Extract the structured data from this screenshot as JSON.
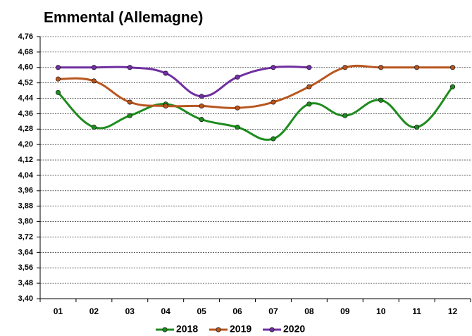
{
  "chart_data": {
    "type": "line",
    "title": "Emmental (Allemagne)",
    "categories": [
      "01",
      "02",
      "03",
      "04",
      "05",
      "06",
      "07",
      "08",
      "09",
      "10",
      "11",
      "12"
    ],
    "series": [
      {
        "name": "2018",
        "color": "#1e8c1e",
        "values": [
          4.47,
          4.29,
          4.35,
          4.41,
          4.33,
          4.29,
          4.23,
          4.41,
          4.35,
          4.43,
          4.29,
          4.5
        ]
      },
      {
        "name": "2019",
        "color": "#b8561e",
        "values": [
          4.54,
          4.53,
          4.42,
          4.4,
          4.4,
          4.39,
          4.42,
          4.5,
          4.6,
          4.6,
          4.6,
          4.6
        ]
      },
      {
        "name": "2020",
        "color": "#7030a0",
        "values": [
          4.6,
          4.6,
          4.6,
          4.57,
          4.45,
          4.55,
          4.6,
          4.6,
          null,
          null,
          null,
          null
        ]
      }
    ],
    "ylim": [
      3.4,
      4.76
    ],
    "yticks": [
      {
        "value": 3.4,
        "label": "3,40"
      },
      {
        "value": 3.48,
        "label": "3,48"
      },
      {
        "value": 3.56,
        "label": "3,56"
      },
      {
        "value": 3.64,
        "label": "3,64"
      },
      {
        "value": 3.72,
        "label": "3,72"
      },
      {
        "value": 3.8,
        "label": "3,80"
      },
      {
        "value": 3.88,
        "label": "3,88"
      },
      {
        "value": 3.96,
        "label": "3,96"
      },
      {
        "value": 4.04,
        "label": "4,04"
      },
      {
        "value": 4.12,
        "label": "4,12"
      },
      {
        "value": 4.2,
        "label": "4,20"
      },
      {
        "value": 4.28,
        "label": "4,28"
      },
      {
        "value": 4.36,
        "label": "4,36"
      },
      {
        "value": 4.44,
        "label": "4,44"
      },
      {
        "value": 4.52,
        "label": "4,52"
      },
      {
        "value": 4.6,
        "label": "4,60"
      },
      {
        "value": 4.68,
        "label": "4,68"
      },
      {
        "value": 4.76,
        "label": "4,76"
      }
    ],
    "grid": true,
    "legend": "bottom"
  }
}
